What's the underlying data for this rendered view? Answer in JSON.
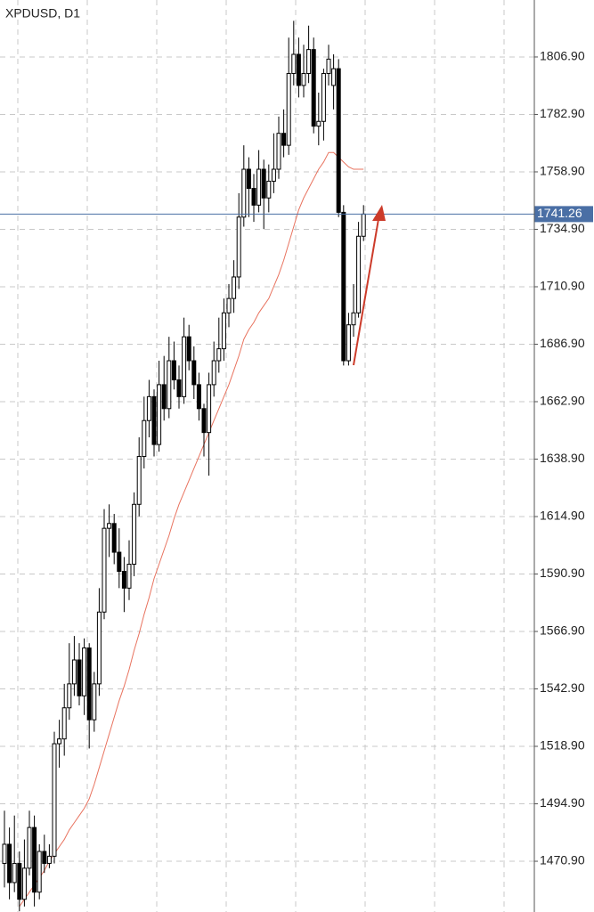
{
  "chart_data": {
    "type": "candlestick",
    "title": "XPDUSD, D1",
    "ylim": [
      1449.7,
      1830.7
    ],
    "yticks": [
      {
        "value": 1470.9,
        "label": "1470.90"
      },
      {
        "value": 1494.9,
        "label": "1494.90"
      },
      {
        "value": 1518.9,
        "label": "1518.90"
      },
      {
        "value": 1542.9,
        "label": "1542.90"
      },
      {
        "value": 1566.9,
        "label": "1566.90"
      },
      {
        "value": 1590.9,
        "label": "1590.90"
      },
      {
        "value": 1614.9,
        "label": "1614.90"
      },
      {
        "value": 1638.9,
        "label": "1638.90"
      },
      {
        "value": 1662.9,
        "label": "1662.90"
      },
      {
        "value": 1686.9,
        "label": "1686.90"
      },
      {
        "value": 1710.9,
        "label": "1710.90"
      },
      {
        "value": 1734.9,
        "label": "1734.90"
      },
      {
        "value": 1758.9,
        "label": "1758.90"
      },
      {
        "value": 1782.9,
        "label": "1782.90"
      },
      {
        "value": 1806.9,
        "label": "1806.90"
      }
    ],
    "grid": true,
    "up_color": "#ffffff",
    "down_color": "#000000",
    "ma_color": "#e8735f",
    "price_line_color": "#4a6fa5",
    "last_price": 1741.26,
    "open": [
      1470,
      1478,
      1462,
      1470,
      1455,
      1468,
      1485,
      1458,
      1475,
      1470,
      1473,
      1520,
      1522,
      1535,
      1545,
      1555,
      1540,
      1560,
      1530,
      1545,
      1575,
      1610,
      1612,
      1600,
      1592,
      1585,
      1595,
      1620,
      1640,
      1655,
      1665,
      1645,
      1670,
      1660,
      1680,
      1672,
      1665,
      1690,
      1680,
      1670,
      1660,
      1650,
      1670,
      1680,
      1685,
      1700,
      1706,
      1715,
      1740,
      1760,
      1752,
      1745,
      1760,
      1748,
      1755,
      1760,
      1775,
      1770,
      1800,
      1808,
      1795,
      1800,
      1810,
      1778,
      1780,
      1800,
      1795,
      1802,
      1742,
      1680,
      1695,
      1700,
      1732
    ],
    "high": [
      1492,
      1485,
      1490,
      1475,
      1480,
      1492,
      1490,
      1478,
      1482,
      1478,
      1525,
      1530,
      1545,
      1562,
      1565,
      1562,
      1564,
      1562,
      1550,
      1585,
      1618,
      1620,
      1616,
      1610,
      1598,
      1605,
      1625,
      1648,
      1665,
      1672,
      1668,
      1680,
      1682,
      1690,
      1688,
      1678,
      1698,
      1695,
      1686,
      1675,
      1662,
      1675,
      1688,
      1698,
      1706,
      1712,
      1722,
      1750,
      1770,
      1765,
      1758,
      1768,
      1764,
      1762,
      1775,
      1782,
      1785,
      1815,
      1822,
      1815,
      1812,
      1820,
      1815,
      1792,
      1802,
      1812,
      1808,
      1806,
      1745,
      1700,
      1712,
      1738,
      1745
    ],
    "low": [
      1460,
      1455,
      1458,
      1450,
      1452,
      1465,
      1452,
      1455,
      1466,
      1468,
      1470,
      1510,
      1515,
      1530,
      1540,
      1536,
      1532,
      1518,
      1525,
      1540,
      1572,
      1598,
      1595,
      1585,
      1575,
      1580,
      1590,
      1615,
      1635,
      1648,
      1640,
      1642,
      1655,
      1656,
      1668,
      1660,
      1662,
      1676,
      1664,
      1655,
      1640,
      1632,
      1665,
      1675,
      1680,
      1694,
      1700,
      1710,
      1736,
      1740,
      1738,
      1742,
      1735,
      1742,
      1750,
      1756,
      1765,
      1766,
      1795,
      1790,
      1790,
      1796,
      1775,
      1770,
      1772,
      1795,
      1785,
      1740,
      1678,
      1678,
      1690,
      1698,
      1730
    ],
    "close": [
      1478,
      1462,
      1470,
      1455,
      1468,
      1485,
      1458,
      1475,
      1470,
      1473,
      1520,
      1522,
      1535,
      1545,
      1555,
      1540,
      1560,
      1530,
      1545,
      1575,
      1610,
      1612,
      1600,
      1592,
      1585,
      1595,
      1620,
      1640,
      1655,
      1665,
      1645,
      1670,
      1660,
      1680,
      1672,
      1665,
      1690,
      1680,
      1670,
      1660,
      1650,
      1670,
      1680,
      1685,
      1700,
      1706,
      1715,
      1740,
      1760,
      1752,
      1745,
      1760,
      1748,
      1755,
      1760,
      1775,
      1770,
      1800,
      1808,
      1795,
      1800,
      1810,
      1778,
      1780,
      1800,
      1806,
      1802,
      1742,
      1680,
      1695,
      1700,
      1732,
      1741.26
    ],
    "ma": [
      null,
      null,
      null,
      1452,
      1455,
      1458,
      1461,
      1464,
      1467,
      1471,
      1474,
      1477,
      1480,
      1484,
      1487,
      1490,
      1493,
      1497,
      1503,
      1510,
      1517,
      1524,
      1531,
      1538,
      1544,
      1551,
      1559,
      1566,
      1574,
      1581,
      1589,
      1595,
      1601,
      1607,
      1614,
      1620,
      1625,
      1630,
      1635,
      1640,
      1645,
      1650,
      1655,
      1660,
      1665,
      1670,
      1676,
      1682,
      1689,
      1693,
      1696,
      1700,
      1703,
      1706,
      1711,
      1716,
      1722,
      1729,
      1736,
      1743,
      1748,
      1752,
      1756,
      1760,
      1763,
      1767,
      1767,
      1765,
      1763,
      1761,
      1760,
      1760,
      1760
    ]
  }
}
